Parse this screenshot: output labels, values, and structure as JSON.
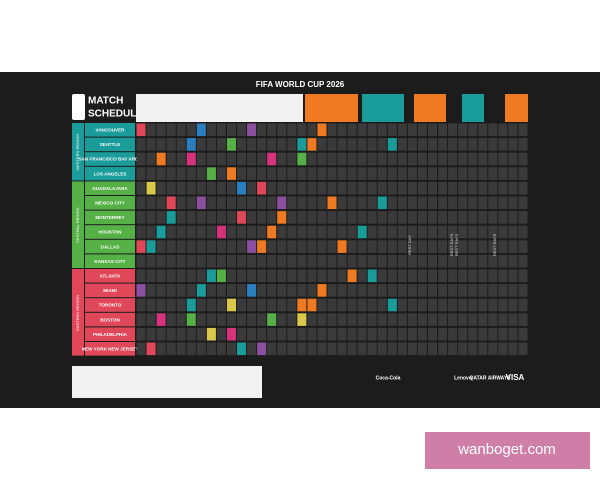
{
  "header": {
    "title": "FIFA WORLD CUP 2026",
    "logo_lines": [
      "MATCH",
      "SCHEDULE"
    ]
  },
  "regions": [
    {
      "name": "WESTERN REGION",
      "color": "#1a9c9a",
      "cities": [
        "VANCOUVER",
        "SEATTLE",
        "SAN FRANCISCO BAY AREA",
        "LOS ANGELES"
      ]
    },
    {
      "name": "CENTRAL REGION",
      "color": "#55b046",
      "cities": [
        "GUADALAJARA",
        "MEXICO CITY",
        "MONTERREY",
        "HOUSTON",
        "DALLAS",
        "KANSAS CITY"
      ]
    },
    {
      "name": "EASTERN REGION",
      "color": "#e0485a",
      "cities": [
        "ATLANTA",
        "MIAMI",
        "TORONTO",
        "BOSTON",
        "PHILADELPHIA",
        "NEW YORK NEW JERSEY"
      ]
    }
  ],
  "rest_days": [
    "REST DAY",
    "REST DAYS",
    "REST DAYS",
    "REST DAYS"
  ],
  "sponsors": [
    "Coca-Cola",
    "Lenovo",
    "QATAR AIRWAYS",
    "VISA"
  ],
  "watermark": "wanboget.com"
}
